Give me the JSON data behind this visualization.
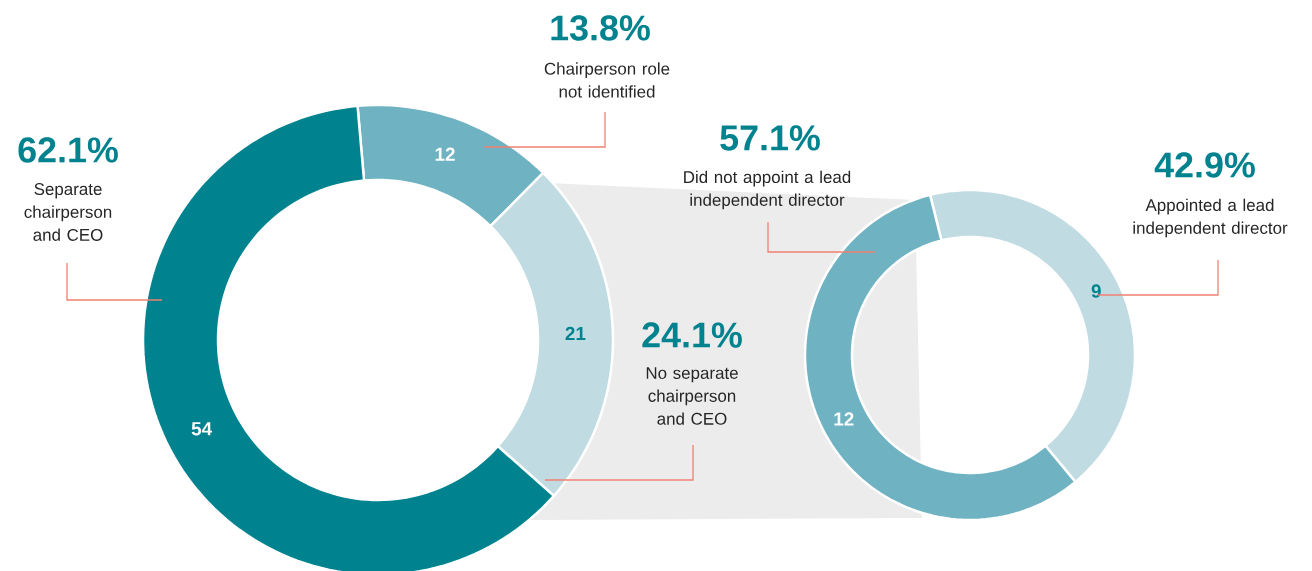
{
  "chart_data": [
    {
      "type": "donut",
      "categories": [
        "Chairperson role not identified",
        "No separate chairperson and CEO",
        "Separate chairperson and CEO"
      ],
      "values": [
        12,
        21,
        54
      ],
      "colors": [
        "#6fb3c2",
        "#c0dce2",
        "#00838f"
      ],
      "data_labels": true,
      "annotations": [
        "13.8%",
        "24.1%",
        "62.1%"
      ]
    },
    {
      "type": "donut",
      "categories": [
        "Appointed a lead independent director",
        "Did not appoint a lead independent director"
      ],
      "values": [
        9,
        12
      ],
      "colors": [
        "#c0dce2",
        "#6fb3c2"
      ],
      "data_labels": true,
      "annotations": [
        "42.9%",
        "57.1%"
      ]
    }
  ]
}
